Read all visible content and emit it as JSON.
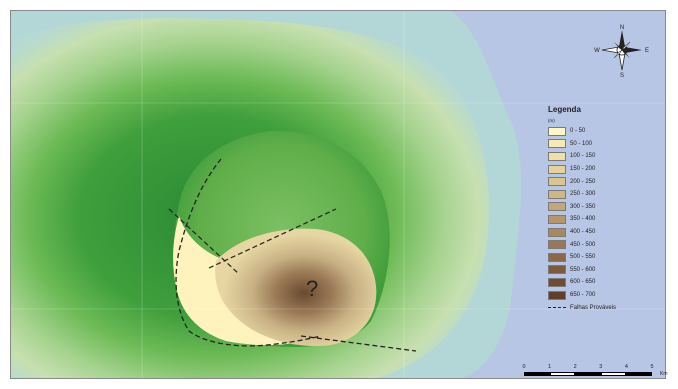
{
  "legend": {
    "title": "Legenda",
    "unit": "(m)",
    "classes": [
      {
        "label": "0 - 50",
        "color": "#fff7c4"
      },
      {
        "label": "50 - 100",
        "color": "#f6eab4"
      },
      {
        "label": "100 - 150",
        "color": "#efe0a6"
      },
      {
        "label": "150 - 200",
        "color": "#e5d49a"
      },
      {
        "label": "200 - 250",
        "color": "#d9c68e"
      },
      {
        "label": "250 - 300",
        "color": "#cdb783"
      },
      {
        "label": "300 - 350",
        "color": "#c1a877"
      },
      {
        "label": "350 - 400",
        "color": "#b4986b"
      },
      {
        "label": "400 - 450",
        "color": "#a7885f"
      },
      {
        "label": "450 - 500",
        "color": "#997854"
      },
      {
        "label": "500 - 550",
        "color": "#8b6849"
      },
      {
        "label": "550 - 600",
        "color": "#7c5a3e"
      },
      {
        "label": "600 - 650",
        "color": "#6e4c34"
      },
      {
        "label": "650 - 700",
        "color": "#5f3f2a"
      }
    ],
    "fault_label": "Falhas Prováveis"
  },
  "compass": {
    "n": "N",
    "s": "S",
    "e": "E",
    "w": "W"
  },
  "scale": {
    "ticks": [
      "0",
      "1",
      "2",
      "3",
      "4",
      "5"
    ],
    "unit": "Km"
  },
  "annotation": {
    "question_mark": "?"
  },
  "colors": {
    "sea": "#b8c6e6",
    "shelf": "#b3d7d6",
    "green_light": "#a8d391",
    "green_mid": "#63b64f",
    "green_dark": "#2b8a34",
    "crater_floor": "#5fae4a",
    "plateau": "#fff3bd",
    "hill": "#8a6a4c"
  }
}
